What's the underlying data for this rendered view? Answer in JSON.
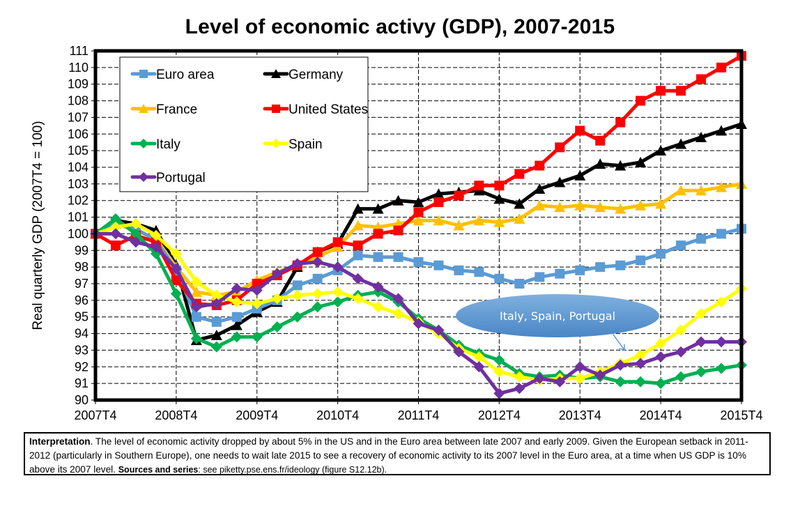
{
  "chart_data": {
    "type": "line",
    "title": "Level of economic activy (GDP), 2007-2015",
    "xlabel": "",
    "ylabel": "Real quarterly GDP (2007T4 = 100)",
    "ylim": [
      90,
      111
    ],
    "yticks": [
      90,
      91,
      92,
      93,
      94,
      95,
      96,
      97,
      98,
      99,
      100,
      101,
      102,
      103,
      104,
      105,
      106,
      107,
      108,
      109,
      110,
      111
    ],
    "xtick_labels": [
      "2007T4",
      "2008T4",
      "2009T4",
      "2010T4",
      "2011T4",
      "2012T4",
      "2013T4",
      "2014T4",
      "2015T4"
    ],
    "x_quarters": 33,
    "grid": true,
    "legend_position": "top-left",
    "annotation": {
      "text": "Italy, Spain, Portugal",
      "color": "#5b9bd5"
    },
    "series": [
      {
        "name": "Euro area",
        "color": "#5b9bd5",
        "marker": "square",
        "values": [
          100.0,
          100.6,
          100.3,
          99.6,
          97.8,
          95.0,
          94.7,
          95.0,
          95.5,
          96.0,
          96.9,
          97.3,
          97.8,
          98.7,
          98.6,
          98.6,
          98.3,
          98.1,
          97.8,
          97.7,
          97.3,
          97.0,
          97.4,
          97.6,
          97.8,
          98.0,
          98.1,
          98.4,
          98.8,
          99.3,
          99.7,
          100.0,
          100.3
        ]
      },
      {
        "name": "Germany",
        "color": "#000000",
        "marker": "triangle",
        "values": [
          100.0,
          100.8,
          100.6,
          100.2,
          98.1,
          93.6,
          93.9,
          94.5,
          95.3,
          95.9,
          98.0,
          98.9,
          99.4,
          101.5,
          101.5,
          102.0,
          101.9,
          102.4,
          102.5,
          102.6,
          102.1,
          101.8,
          102.7,
          103.1,
          103.5,
          104.2,
          104.1,
          104.3,
          105.0,
          105.4,
          105.8,
          106.2,
          106.6
        ]
      },
      {
        "name": "France",
        "color": "#ffc000",
        "marker": "triangle",
        "values": [
          100.0,
          100.6,
          100.2,
          99.7,
          98.0,
          96.5,
          96.3,
          96.5,
          97.2,
          97.7,
          98.1,
          98.6,
          99.2,
          100.5,
          100.4,
          100.6,
          100.8,
          100.8,
          100.5,
          100.8,
          100.7,
          100.9,
          101.7,
          101.6,
          101.7,
          101.6,
          101.5,
          101.7,
          101.8,
          102.6,
          102.6,
          102.8,
          103.0
        ]
      },
      {
        "name": "United States",
        "color": "#ff0000",
        "marker": "square",
        "values": [
          100.0,
          99.3,
          99.9,
          99.5,
          97.2,
          95.8,
          95.7,
          96.0,
          97.0,
          97.5,
          98.1,
          98.9,
          99.5,
          99.3,
          100.0,
          100.2,
          101.3,
          101.9,
          102.3,
          102.9,
          102.9,
          103.6,
          104.1,
          105.2,
          106.2,
          105.6,
          106.7,
          108.0,
          108.6,
          108.6,
          109.3,
          110.0,
          110.7
        ]
      },
      {
        "name": "Italy",
        "color": "#00b050",
        "marker": "diamond",
        "values": [
          100.0,
          100.9,
          100.0,
          98.8,
          96.4,
          93.7,
          93.2,
          93.8,
          93.8,
          94.4,
          95.0,
          95.6,
          95.9,
          96.3,
          96.5,
          95.9,
          94.9,
          94.2,
          93.3,
          92.8,
          92.4,
          91.6,
          91.4,
          91.5,
          91.3,
          91.4,
          91.1,
          91.1,
          91.0,
          91.4,
          91.7,
          91.9,
          92.1
        ]
      },
      {
        "name": "Spain",
        "color": "#ffff00",
        "marker": "diamond",
        "values": [
          100.0,
          100.4,
          100.6,
          99.9,
          98.8,
          97.1,
          96.3,
          95.9,
          95.8,
          96.1,
          96.3,
          96.4,
          96.5,
          96.1,
          95.6,
          95.2,
          94.7,
          94.0,
          93.1,
          92.6,
          91.7,
          91.4,
          91.2,
          91.3,
          91.3,
          91.7,
          92.2,
          92.7,
          93.4,
          94.2,
          95.2,
          95.9,
          96.7
        ]
      },
      {
        "name": "Portugal",
        "color": "#7030a0",
        "marker": "diamond",
        "values": [
          100.0,
          100.0,
          99.5,
          99.2,
          97.9,
          95.6,
          95.8,
          96.7,
          96.6,
          97.6,
          98.2,
          98.3,
          98.0,
          97.3,
          96.8,
          96.1,
          94.6,
          94.2,
          92.9,
          92.0,
          90.4,
          90.7,
          91.3,
          91.1,
          92.0,
          91.5,
          92.1,
          92.2,
          92.6,
          92.9,
          93.5,
          93.5,
          93.5
        ]
      }
    ]
  },
  "interpretation": {
    "label": "Interpretation",
    "text": ". The level of economic activity dropped by about 5% in the US and in the Euro area between late 2007 and early 2009. Given the European setback in 2011-2012 (particularly in Southern Europe), one needs to wait late 2015 to see a recovery of economic activity to its 2007 level in the Euro area, at a time when US GDP is 10% above its 2007 level. ",
    "sources_label": "Sources and series",
    "sources_text": ": see piketty.pse.ens.fr/ideology (figure S12.12b)."
  }
}
